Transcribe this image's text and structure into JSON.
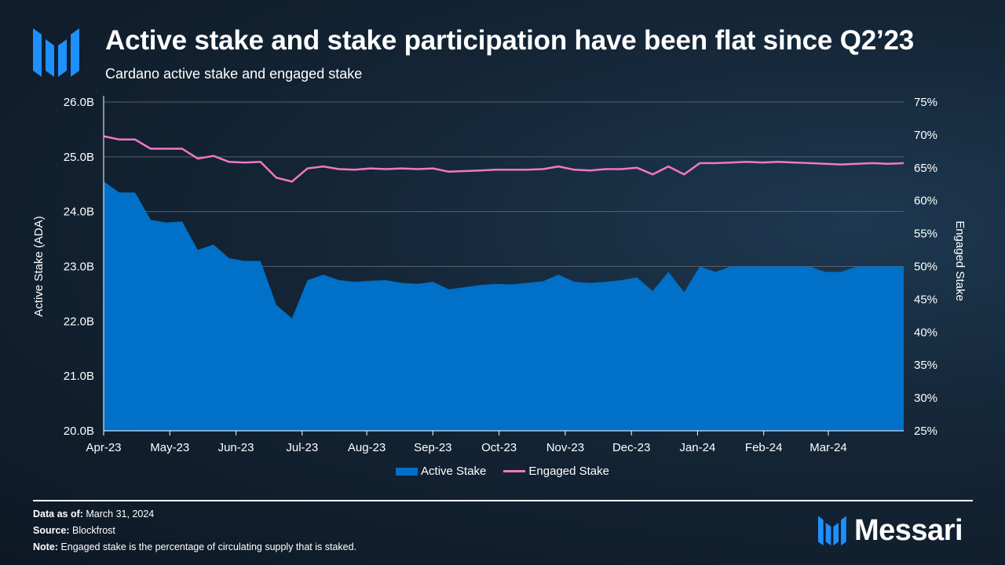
{
  "header": {
    "title": "Active stake and stake participation have been flat since Q2’23",
    "subtitle": "Cardano active stake and engaged stake"
  },
  "colors": {
    "active_stake": "#0070c8",
    "engaged_stake": "#f277c4",
    "accent": "#1e90ff"
  },
  "footer": {
    "data_as_of_label": "Data as of:",
    "data_as_of_value": "March 31, 2024",
    "source_label": "Source:",
    "source_value": "Blockfrost",
    "note_label": "Note:",
    "note_value": "Engaged stake is the percentage of circulating supply that is staked."
  },
  "brand": {
    "name": "Messari"
  },
  "chart_data": {
    "type": "area",
    "title": "Cardano active stake and engaged stake",
    "xlabel": "",
    "ylabel": "Active Stake (ADA)",
    "y2label": "Engaged Stake",
    "ylim": [
      20.0,
      26.0
    ],
    "y2lim": [
      25,
      75
    ],
    "yticks": [
      "20.0B",
      "21.0B",
      "22.0B",
      "23.0B",
      "24.0B",
      "25.0B",
      "26.0B"
    ],
    "y2ticks": [
      "25%",
      "30%",
      "35%",
      "40%",
      "45%",
      "50%",
      "55%",
      "60%",
      "65%",
      "70%",
      "75%"
    ],
    "x_tick_labels": [
      "Apr-23",
      "May-23",
      "Jun-23",
      "Jul-23",
      "Aug-23",
      "Sep-23",
      "Oct-23",
      "Nov-23",
      "Dec-23",
      "Jan-24",
      "Feb-24",
      "Mar-24"
    ],
    "x_tick_weeks": [
      0,
      4.3,
      8.6,
      12.9,
      17.1,
      21.4,
      25.7,
      30.0,
      34.3,
      38.6,
      42.9,
      47.1
    ],
    "x_range_weeks": [
      0,
      52
    ],
    "grid": true,
    "legend": "bottom-center",
    "series": [
      {
        "name": "Active Stake",
        "type": "area",
        "axis": "left",
        "unit": "B ADA",
        "values": [
          24.55,
          24.35,
          24.35,
          23.85,
          23.8,
          23.82,
          23.3,
          23.4,
          23.15,
          23.1,
          23.1,
          22.3,
          22.05,
          22.75,
          22.85,
          22.75,
          22.72,
          22.74,
          22.75,
          22.7,
          22.68,
          22.72,
          22.58,
          22.62,
          22.66,
          22.68,
          22.67,
          22.7,
          22.73,
          22.85,
          22.72,
          22.7,
          22.72,
          22.75,
          22.8,
          22.55,
          22.9,
          22.53,
          23.0,
          22.9,
          23.0,
          23.0,
          23.0,
          23.0,
          23.0,
          23.0,
          22.9,
          22.9,
          23.0,
          23.0,
          23.0,
          23.0
        ]
      },
      {
        "name": "Engaged Stake",
        "type": "line",
        "axis": "right",
        "unit": "%",
        "values": [
          69.8,
          69.3,
          69.3,
          67.9,
          67.9,
          67.9,
          66.4,
          66.8,
          65.9,
          65.8,
          65.9,
          63.5,
          62.9,
          64.9,
          65.2,
          64.8,
          64.7,
          64.9,
          64.8,
          64.9,
          64.8,
          64.9,
          64.4,
          64.5,
          64.6,
          64.7,
          64.7,
          64.7,
          64.8,
          65.2,
          64.7,
          64.6,
          64.8,
          64.8,
          65.0,
          64.0,
          65.2,
          64.0,
          65.7,
          65.7,
          65.8,
          65.9,
          65.8,
          65.9,
          65.8,
          65.7,
          65.6,
          65.5,
          65.6,
          65.7,
          65.6,
          65.7
        ]
      }
    ]
  }
}
